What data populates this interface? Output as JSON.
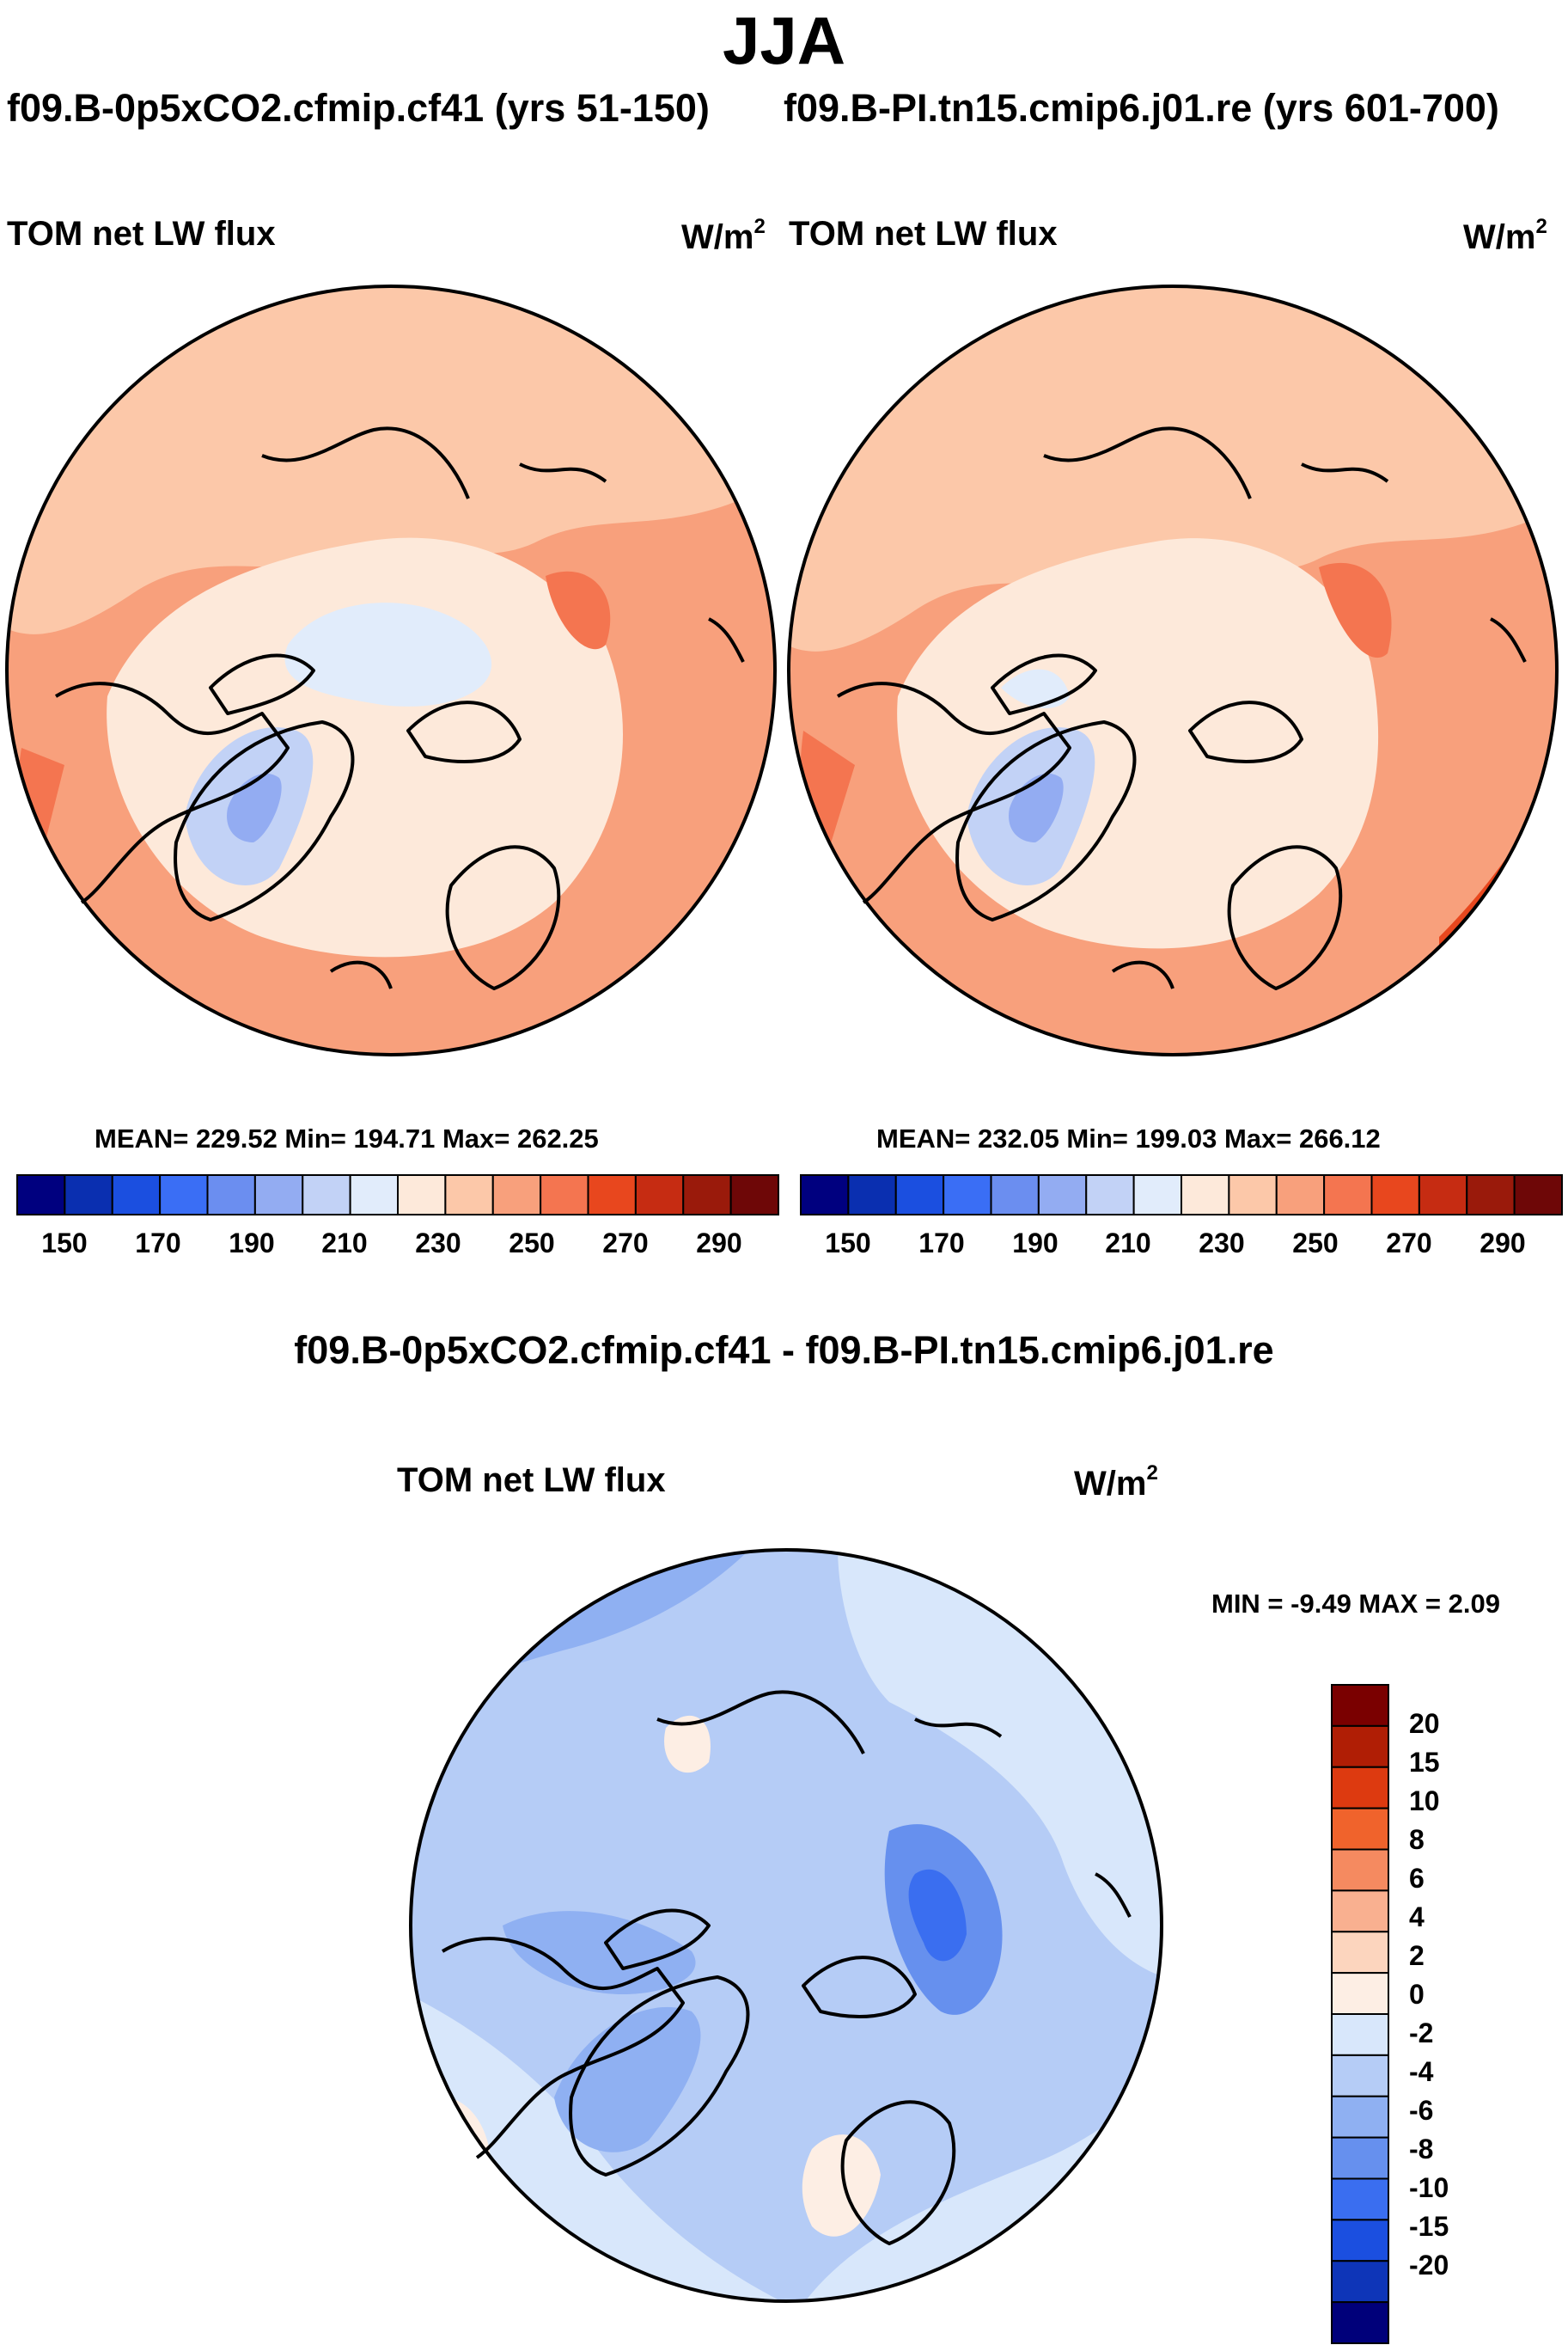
{
  "figure": {
    "title": "JJA",
    "diff_title": "f09.B-0p5xCO2.cfmip.cf41 - f09.B-PI.tn15.cmip6.j01.re"
  },
  "panels": [
    {
      "case_title": "f09.B-0p5xCO2.cfmip.cf41 (yrs 51-150)",
      "variable": "TOM net LW flux",
      "units_base": "W/m",
      "units_exp": "2",
      "stats": "MEAN= 229.52  Min= 194.71  Max= 262.25",
      "colorbar_labels": [
        "150",
        "170",
        "190",
        "210",
        "230",
        "250",
        "270",
        "290"
      ]
    },
    {
      "case_title": "f09.B-PI.tn15.cmip6.j01.re (yrs 601-700)",
      "variable": "TOM net LW flux",
      "units_base": "W/m",
      "units_exp": "2",
      "stats": "MEAN= 232.05  Min= 199.03  Max= 266.12",
      "colorbar_labels": [
        "150",
        "170",
        "190",
        "210",
        "230",
        "250",
        "270",
        "290"
      ]
    },
    {
      "variable": "TOM net LW flux",
      "units_base": "W/m",
      "units_exp": "2",
      "stats": "MIN =  -9.49 MAX =   2.09",
      "colorbar_labels": [
        "20",
        "15",
        "10",
        "8",
        "6",
        "4",
        "2",
        "0",
        "-2",
        "-4",
        "-6",
        "-8",
        "-10",
        "-15",
        "-20"
      ]
    }
  ],
  "colors": {
    "abs_scale": [
      "#00007f",
      "#0a2fb0",
      "#1b4fe0",
      "#3a6ef5",
      "#6b8ef0",
      "#93acf2",
      "#c2d2f6",
      "#e1ecfb",
      "#fde9da",
      "#fcc8a9",
      "#f8a07c",
      "#f47550",
      "#e8471e",
      "#c62c12",
      "#9a1a0b",
      "#6e0707"
    ],
    "diff_scale_top_to_bottom": [
      "#7a0000",
      "#b01e05",
      "#dd3a10",
      "#f0632c",
      "#f58a60",
      "#f9b090",
      "#fcd5be",
      "#fdeee4",
      "#d8e7fb",
      "#b5ccf6",
      "#8fb0f2",
      "#6690ee",
      "#3a6ef0",
      "#1b4fe0",
      "#0e35b8",
      "#00007a"
    ]
  }
}
